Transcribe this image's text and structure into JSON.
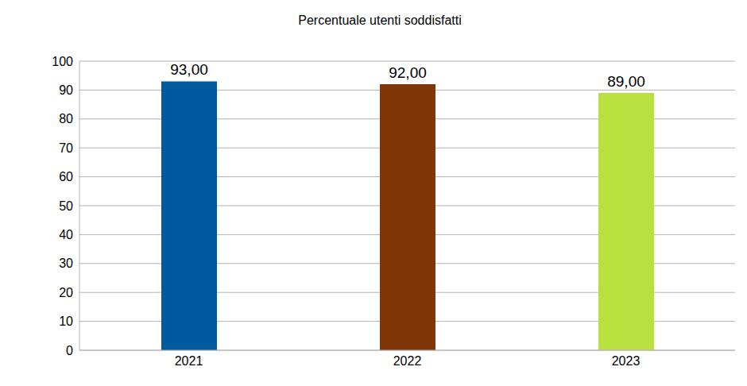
{
  "chart_data": {
    "type": "bar",
    "title": "Percentuale utenti soddisfatti",
    "categories": [
      "2021",
      "2022",
      "2023"
    ],
    "values": [
      93,
      92,
      89
    ],
    "value_labels": [
      "93,00",
      "92,00",
      "89,00"
    ],
    "colors": [
      "#005a9e",
      "#7f3609",
      "#b8e03f"
    ],
    "ylim": [
      0,
      100
    ],
    "yticks": [
      0,
      10,
      20,
      30,
      40,
      50,
      60,
      70,
      80,
      90,
      100
    ],
    "grid": true,
    "data_labels": true
  }
}
